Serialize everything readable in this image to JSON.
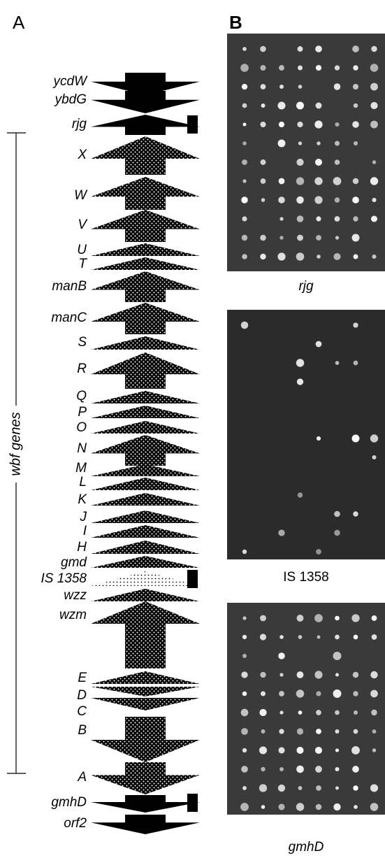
{
  "panel_a": {
    "label": "A",
    "genes": [
      {
        "name": "ycdW"
      },
      {
        "name": "ybdG"
      },
      {
        "name": "rjg"
      },
      {
        "name": "X"
      },
      {
        "name": "W"
      },
      {
        "name": "V"
      },
      {
        "name": "U"
      },
      {
        "name": "T"
      },
      {
        "name": "manB"
      },
      {
        "name": "manC"
      },
      {
        "name": "S"
      },
      {
        "name": "R"
      },
      {
        "name": "Q"
      },
      {
        "name": "P"
      },
      {
        "name": "O"
      },
      {
        "name": "N"
      },
      {
        "name": "M"
      },
      {
        "name": "L"
      },
      {
        "name": "K"
      },
      {
        "name": "J"
      },
      {
        "name": "I"
      },
      {
        "name": "H"
      },
      {
        "name": "gmd"
      },
      {
        "name": "IS 1358"
      },
      {
        "name": "wzz"
      },
      {
        "name": "wzm"
      },
      {
        "name": "E"
      },
      {
        "name": "D"
      },
      {
        "name": "C"
      },
      {
        "name": "B"
      },
      {
        "name": "A"
      },
      {
        "name": "gmhD"
      },
      {
        "name": "orf2"
      }
    ],
    "bracket_label": "wbf genes"
  },
  "panel_b": {
    "label": "B",
    "blots": [
      {
        "caption": "rjg"
      },
      {
        "caption": "IS 1358"
      },
      {
        "caption": "gmhD"
      }
    ]
  }
}
